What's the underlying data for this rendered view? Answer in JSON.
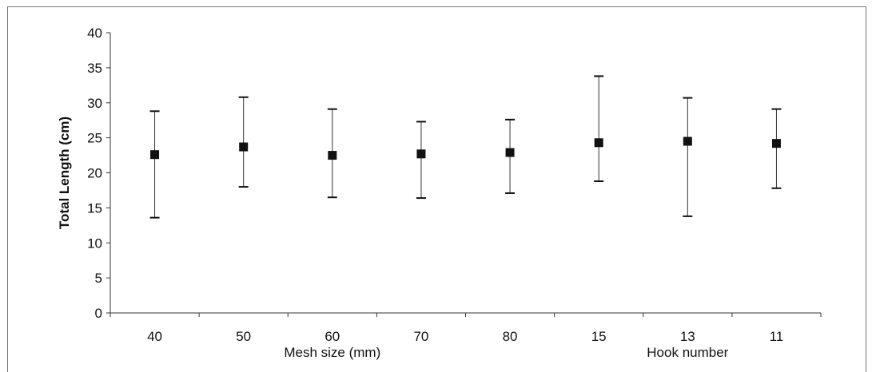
{
  "chart_data": {
    "type": "scatter",
    "title": "",
    "ylabel": "Total Length (cm)",
    "ylim": [
      0,
      40
    ],
    "yticks": [
      0,
      5,
      10,
      15,
      20,
      25,
      30,
      35,
      40
    ],
    "grid": false,
    "categories": [
      "40",
      "50",
      "60",
      "70",
      "80",
      "15",
      "13",
      "11"
    ],
    "group_labels": [
      {
        "label": "Mesh size (mm)",
        "from": 0,
        "to": 4
      },
      {
        "label": "Hook number",
        "from": 5,
        "to": 7
      }
    ],
    "series": [
      {
        "values": [
          22.6,
          23.7,
          22.5,
          22.7,
          22.9,
          24.3,
          24.5,
          24.2
        ],
        "error_low": [
          13.6,
          18.0,
          16.5,
          16.4,
          17.1,
          18.8,
          13.8,
          17.8
        ],
        "error_high": [
          28.8,
          30.8,
          29.1,
          27.3,
          27.6,
          33.8,
          30.7,
          29.1
        ]
      }
    ],
    "colors": {
      "marker": "#111111",
      "axis": "#333333"
    }
  }
}
